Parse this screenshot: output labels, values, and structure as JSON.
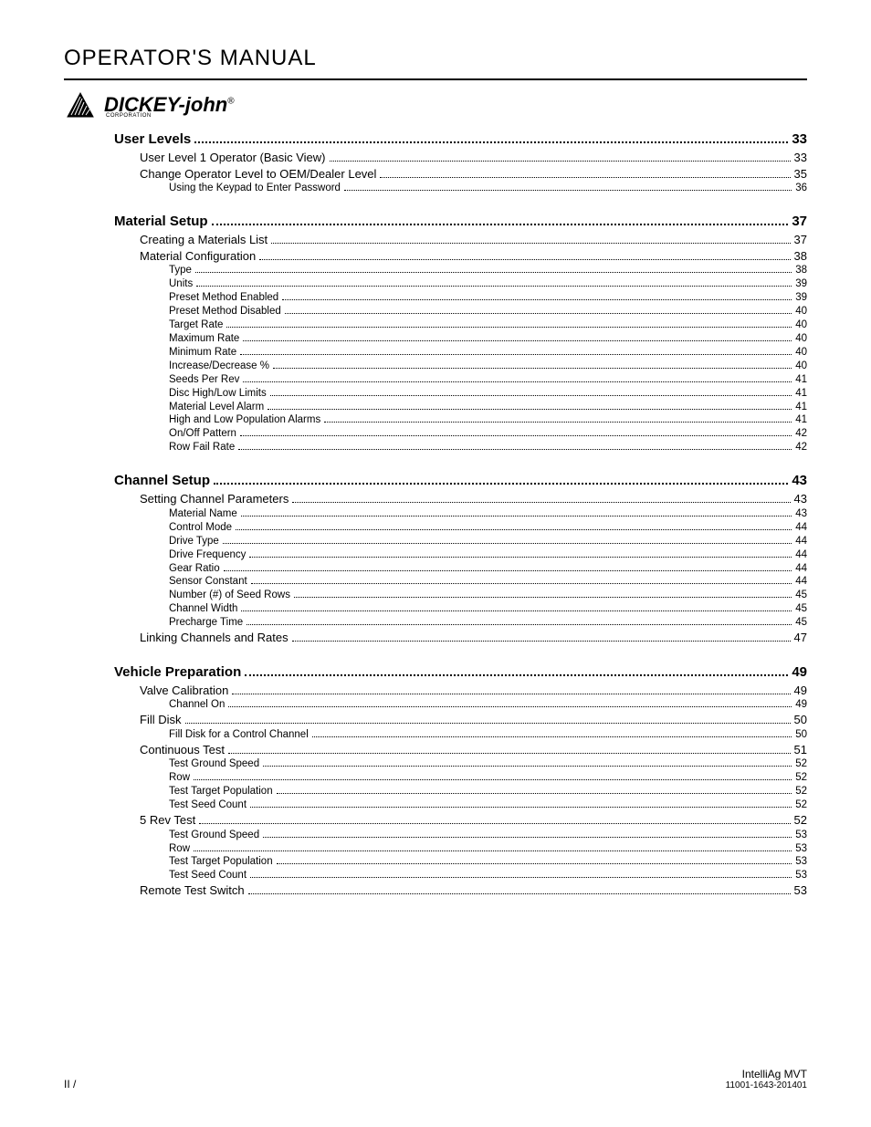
{
  "header": {
    "title": "OPERATOR'S MANUAL",
    "brand_main": "DICKEY-john",
    "brand_sub": "CORPORATION",
    "brand_reg": "®"
  },
  "colors": {
    "text": "#000000",
    "bg": "#ffffff"
  },
  "toc": [
    {
      "level": 1,
      "label": "User Levels",
      "page": "33"
    },
    {
      "level": 2,
      "label": "User Level 1 Operator (Basic View)",
      "page": "33"
    },
    {
      "level": 2,
      "label": "Change Operator Level to OEM/Dealer Level",
      "page": "35"
    },
    {
      "level": 3,
      "label": "Using the Keypad to Enter Password",
      "page": "36"
    },
    {
      "level": 1,
      "label": "Material Setup",
      "page": "37"
    },
    {
      "level": 2,
      "label": "Creating a Materials List",
      "page": "37"
    },
    {
      "level": 2,
      "label": "Material Configuration",
      "page": "38"
    },
    {
      "level": 3,
      "label": "Type",
      "page": "38"
    },
    {
      "level": 3,
      "label": "Units",
      "page": "39"
    },
    {
      "level": 3,
      "label": "Preset Method Enabled",
      "page": "39"
    },
    {
      "level": 3,
      "label": "Preset Method Disabled",
      "page": "40"
    },
    {
      "level": 3,
      "label": "Target Rate",
      "page": "40"
    },
    {
      "level": 3,
      "label": "Maximum Rate",
      "page": "40"
    },
    {
      "level": 3,
      "label": "Minimum Rate",
      "page": "40"
    },
    {
      "level": 3,
      "label": "Increase/Decrease %",
      "page": "40"
    },
    {
      "level": 3,
      "label": "Seeds Per Rev",
      "page": "41"
    },
    {
      "level": 3,
      "label": "Disc High/Low Limits",
      "page": "41"
    },
    {
      "level": 3,
      "label": "Material Level Alarm",
      "page": "41"
    },
    {
      "level": 3,
      "label": "High and Low Population Alarms",
      "page": "41"
    },
    {
      "level": 3,
      "label": "On/Off Pattern",
      "page": "42"
    },
    {
      "level": 3,
      "label": "Row Fail Rate",
      "page": "42"
    },
    {
      "level": 1,
      "label": "Channel Setup",
      "page": "43"
    },
    {
      "level": 2,
      "label": "Setting Channel Parameters",
      "page": "43"
    },
    {
      "level": 3,
      "label": "Material Name",
      "page": "43"
    },
    {
      "level": 3,
      "label": "Control Mode",
      "page": "44"
    },
    {
      "level": 3,
      "label": "Drive Type",
      "page": "44"
    },
    {
      "level": 3,
      "label": "Drive Frequency",
      "page": "44"
    },
    {
      "level": 3,
      "label": "Gear Ratio",
      "page": "44"
    },
    {
      "level": 3,
      "label": "Sensor Constant",
      "page": "44"
    },
    {
      "level": 3,
      "label": "Number (#) of Seed Rows",
      "page": "45"
    },
    {
      "level": 3,
      "label": "Channel Width",
      "page": "45"
    },
    {
      "level": 3,
      "label": "Precharge Time",
      "page": "45"
    },
    {
      "level": 2,
      "label": "Linking Channels and Rates",
      "page": "47"
    },
    {
      "level": 1,
      "label": "Vehicle Preparation",
      "page": "49"
    },
    {
      "level": 2,
      "label": "Valve Calibration",
      "page": "49"
    },
    {
      "level": 3,
      "label": "Channel On",
      "page": "49"
    },
    {
      "level": 2,
      "label": "Fill Disk",
      "page": "50"
    },
    {
      "level": 3,
      "label": "Fill Disk for a Control Channel",
      "page": "50"
    },
    {
      "level": 2,
      "label": "Continuous Test",
      "page": "51"
    },
    {
      "level": 3,
      "label": "Test Ground Speed",
      "page": "52"
    },
    {
      "level": 3,
      "label": "Row",
      "page": "52"
    },
    {
      "level": 3,
      "label": "Test Target Population",
      "page": "52"
    },
    {
      "level": 3,
      "label": "Test Seed Count",
      "page": "52"
    },
    {
      "level": 2,
      "label": "5 Rev Test",
      "page": "52"
    },
    {
      "level": 3,
      "label": "Test Ground Speed",
      "page": "53"
    },
    {
      "level": 3,
      "label": "Row",
      "page": "53"
    },
    {
      "level": 3,
      "label": "Test Target Population",
      "page": "53"
    },
    {
      "level": 3,
      "label": "Test Seed Count",
      "page": "53"
    },
    {
      "level": 2,
      "label": "Remote Test Switch",
      "page": "53"
    }
  ],
  "footer": {
    "left": "II /",
    "right_title": "IntelliAg MVT",
    "right_doc": "11001-1643-201401"
  }
}
